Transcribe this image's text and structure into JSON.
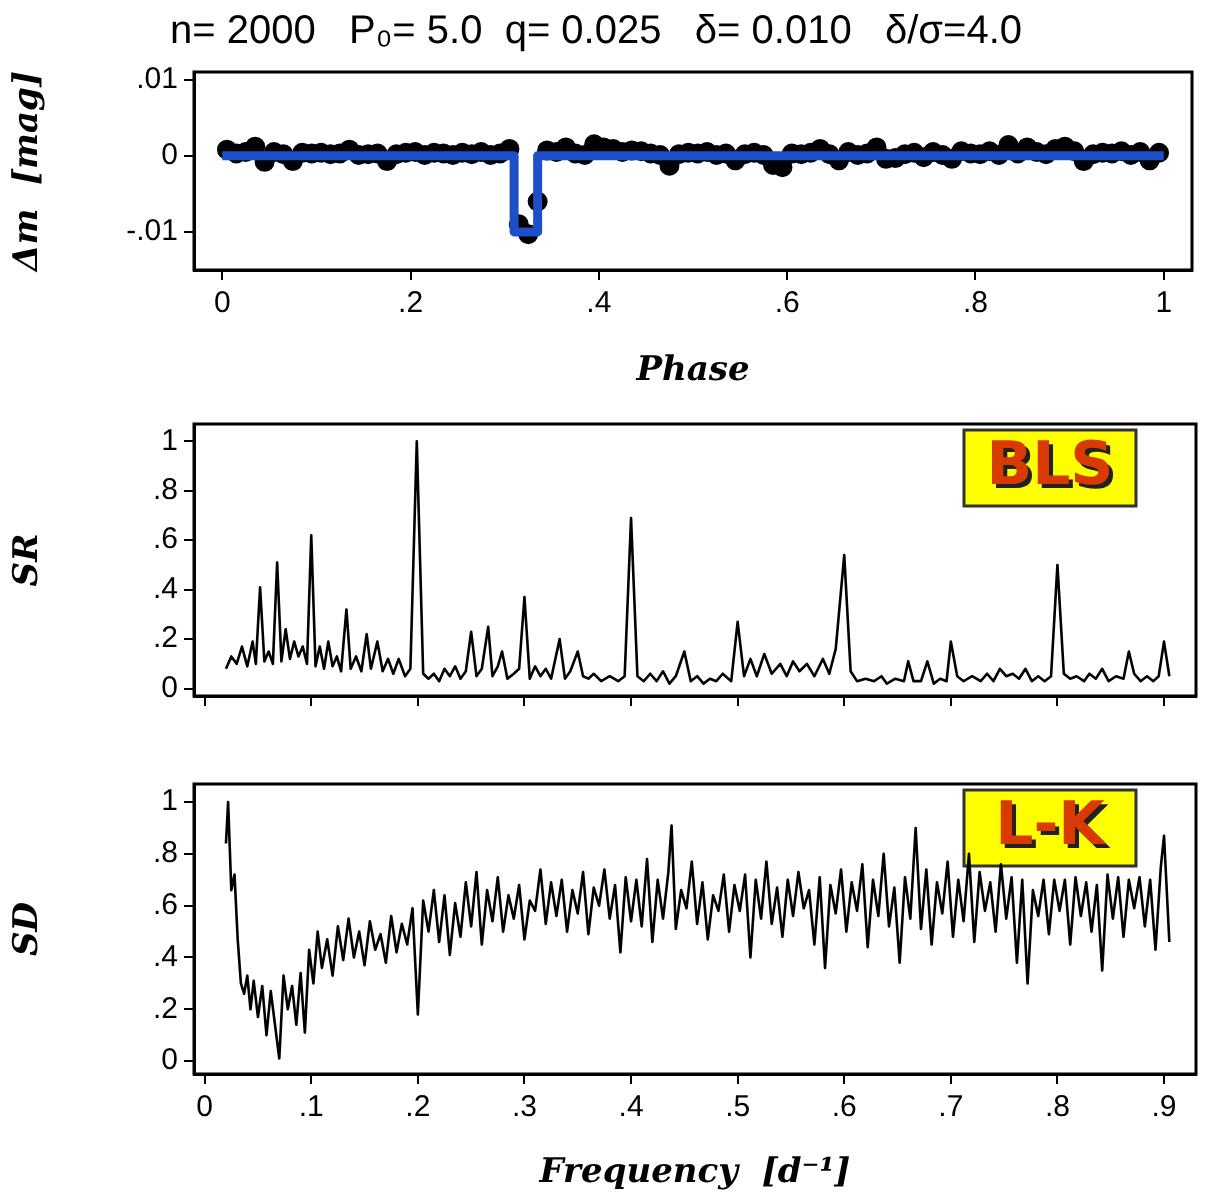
{
  "chart_data": [
    {
      "type": "scatter",
      "title": "n= 2000   P₀= 5.0  q= 0.025   δ= 0.010   δ/σ=4.0",
      "xlabel": "Phase",
      "ylabel": "Δm  [mag]",
      "xlim": [
        -0.03,
        1.03
      ],
      "xticks": [
        {
          "value": 0,
          "label": "0"
        },
        {
          "value": 0.2,
          "label": ".2"
        },
        {
          "value": 0.4,
          "label": ".4"
        },
        {
          "value": 0.6,
          "label": ".6"
        },
        {
          "value": 0.8,
          "label": ".8"
        },
        {
          "value": 1,
          "label": "1"
        }
      ],
      "ylim": [
        -0.015,
        0.011
      ],
      "yticks": [
        {
          "value": -0.01,
          "label": "-.01"
        },
        {
          "value": 0,
          "label": "0"
        },
        {
          "value": 0.01,
          "label": ".01"
        }
      ],
      "series": [
        {
          "type": "scatter",
          "marker": "circle",
          "color": "#000000",
          "x": [
            0.005,
            0.015,
            0.025,
            0.035,
            0.045,
            0.055,
            0.065,
            0.075,
            0.085,
            0.095,
            0.105,
            0.115,
            0.125,
            0.135,
            0.145,
            0.155,
            0.165,
            0.175,
            0.185,
            0.195,
            0.205,
            0.215,
            0.225,
            0.235,
            0.245,
            0.255,
            0.265,
            0.275,
            0.285,
            0.295,
            0.305,
            0.315,
            0.325,
            0.335,
            0.345,
            0.355,
            0.365,
            0.375,
            0.385,
            0.395,
            0.405,
            0.415,
            0.425,
            0.435,
            0.445,
            0.455,
            0.465,
            0.475,
            0.485,
            0.495,
            0.505,
            0.515,
            0.525,
            0.535,
            0.545,
            0.555,
            0.565,
            0.575,
            0.585,
            0.595,
            0.605,
            0.615,
            0.625,
            0.635,
            0.645,
            0.655,
            0.665,
            0.675,
            0.685,
            0.695,
            0.705,
            0.715,
            0.725,
            0.735,
            0.745,
            0.755,
            0.765,
            0.775,
            0.785,
            0.795,
            0.805,
            0.815,
            0.825,
            0.835,
            0.845,
            0.855,
            0.865,
            0.875,
            0.885,
            0.895,
            0.905,
            0.915,
            0.925,
            0.935,
            0.945,
            0.955,
            0.965,
            0.975,
            0.985,
            0.995
          ],
          "values": [
            0.0008,
            0.0003,
            0.0005,
            0.0012,
            -0.0008,
            0.0005,
            0.0002,
            -0.0007,
            0.0004,
            0.0003,
            0.0004,
            0.0002,
            0.0003,
            0.0008,
            0.0001,
            0.0002,
            0.0003,
            -0.0007,
            0.0002,
            0.0004,
            0.0005,
            0.0001,
            0.0004,
            0.0003,
            0.0001,
            0.0004,
            0.0002,
            0.0005,
            0.0001,
            0.0003,
            0.0009,
            -0.009,
            -0.0103,
            -0.006,
            0.0007,
            0.0005,
            0.0011,
            0.0003,
            0.0001,
            0.0015,
            0.0011,
            0.0009,
            0.0005,
            0.0007,
            0.0006,
            0.0003,
            0.0001,
            -0.0013,
            0.0002,
            0.0004,
            0.0003,
            0.0005,
            0.0001,
            0.0003,
            -0.0006,
            0.0002,
            0.0004,
            0.0001,
            -0.0012,
            -0.0015,
            0.0003,
            0.0002,
            0.0004,
            0.0009,
            0.0002,
            -0.0006,
            0.0005,
            0.0001,
            0.0003,
            0.0011,
            -0.0004,
            -0.0003,
            0.0002,
            0.0004,
            -0.0002,
            0.0005,
            0.0001,
            -0.0004,
            0.0006,
            0.0003,
            0.0002,
            0.0006,
            0.0001,
            0.0014,
            0.0003,
            0.0011,
            0.0005,
            0.0002,
            0.0009,
            0.0012,
            0.0006,
            -0.0007,
            0.0002,
            0.0004,
            0.0003,
            0.0006,
            0.0001,
            0.0005,
            -0.0006,
            0.0004
          ]
        },
        {
          "type": "line",
          "color": "#1f4fc8",
          "x": [
            0,
            0.31,
            0.31,
            0.335,
            0.335,
            1
          ],
          "values": [
            0,
            0,
            -0.01,
            -0.01,
            0,
            0
          ]
        }
      ]
    },
    {
      "type": "line",
      "ylabel": "SR",
      "annotations": [
        "BLS"
      ],
      "tick_labels": "y",
      "xlim": [
        -0.01,
        0.93
      ],
      "xticks": [
        {
          "value": 0,
          "label": null
        },
        {
          "value": 0.1,
          "label": null
        },
        {
          "value": 0.2,
          "label": null
        },
        {
          "value": 0.3,
          "label": null
        },
        {
          "value": 0.4,
          "label": null
        },
        {
          "value": 0.5,
          "label": null
        },
        {
          "value": 0.6,
          "label": null
        },
        {
          "value": 0.7,
          "label": null
        },
        {
          "value": 0.8,
          "label": null
        },
        {
          "value": 0.9,
          "label": null
        }
      ],
      "ylim": [
        -0.03,
        1.07
      ],
      "yticks": [
        {
          "value": 0,
          "label": "0"
        },
        {
          "value": 0.2,
          "label": ".2"
        },
        {
          "value": 0.4,
          "label": ".4"
        },
        {
          "value": 0.6,
          "label": ".6"
        },
        {
          "value": 0.8,
          "label": ".8"
        },
        {
          "value": 1,
          "label": "1"
        }
      ],
      "series": [
        {
          "color": "#000000",
          "x": [
            0.02,
            0.025,
            0.03,
            0.035,
            0.04,
            0.045,
            0.048,
            0.052,
            0.056,
            0.06,
            0.064,
            0.068,
            0.072,
            0.076,
            0.08,
            0.084,
            0.088,
            0.092,
            0.096,
            0.1,
            0.104,
            0.108,
            0.112,
            0.116,
            0.12,
            0.124,
            0.128,
            0.133,
            0.137,
            0.142,
            0.147,
            0.152,
            0.156,
            0.162,
            0.167,
            0.172,
            0.177,
            0.182,
            0.188,
            0.193,
            0.199,
            0.205,
            0.21,
            0.215,
            0.22,
            0.225,
            0.23,
            0.235,
            0.24,
            0.245,
            0.25,
            0.255,
            0.26,
            0.266,
            0.27,
            0.275,
            0.279,
            0.284,
            0.29,
            0.295,
            0.3,
            0.305,
            0.31,
            0.315,
            0.32,
            0.325,
            0.333,
            0.338,
            0.343,
            0.35,
            0.355,
            0.36,
            0.365,
            0.372,
            0.38,
            0.388,
            0.394,
            0.4,
            0.406,
            0.412,
            0.418,
            0.424,
            0.43,
            0.436,
            0.442,
            0.45,
            0.456,
            0.462,
            0.468,
            0.474,
            0.48,
            0.486,
            0.494,
            0.5,
            0.506,
            0.512,
            0.518,
            0.525,
            0.532,
            0.54,
            0.546,
            0.552,
            0.558,
            0.565,
            0.572,
            0.58,
            0.586,
            0.592,
            0.6,
            0.606,
            0.612,
            0.62,
            0.628,
            0.635,
            0.64,
            0.648,
            0.656,
            0.66,
            0.665,
            0.672,
            0.678,
            0.684,
            0.69,
            0.696,
            0.7,
            0.706,
            0.712,
            0.72,
            0.728,
            0.734,
            0.74,
            0.746,
            0.752,
            0.758,
            0.764,
            0.77,
            0.776,
            0.782,
            0.788,
            0.794,
            0.8,
            0.806,
            0.812,
            0.818,
            0.825,
            0.83,
            0.836,
            0.842,
            0.848,
            0.855,
            0.862,
            0.867,
            0.872,
            0.878,
            0.884,
            0.89,
            0.895,
            0.9,
            0.905
          ],
          "values": [
            0.08,
            0.13,
            0.1,
            0.17,
            0.09,
            0.19,
            0.1,
            0.41,
            0.11,
            0.15,
            0.1,
            0.51,
            0.11,
            0.24,
            0.12,
            0.19,
            0.13,
            0.17,
            0.1,
            0.62,
            0.09,
            0.17,
            0.08,
            0.19,
            0.09,
            0.13,
            0.07,
            0.32,
            0.08,
            0.13,
            0.07,
            0.22,
            0.08,
            0.19,
            0.07,
            0.12,
            0.06,
            0.12,
            0.05,
            0.08,
            1.0,
            0.06,
            0.04,
            0.06,
            0.03,
            0.08,
            0.05,
            0.09,
            0.04,
            0.07,
            0.23,
            0.05,
            0.08,
            0.25,
            0.05,
            0.09,
            0.15,
            0.04,
            0.06,
            0.08,
            0.37,
            0.04,
            0.09,
            0.05,
            0.08,
            0.04,
            0.2,
            0.04,
            0.07,
            0.15,
            0.05,
            0.04,
            0.06,
            0.03,
            0.05,
            0.03,
            0.05,
            0.69,
            0.05,
            0.03,
            0.06,
            0.03,
            0.07,
            0.02,
            0.05,
            0.15,
            0.03,
            0.05,
            0.02,
            0.04,
            0.03,
            0.06,
            0.03,
            0.27,
            0.05,
            0.12,
            0.05,
            0.14,
            0.06,
            0.1,
            0.05,
            0.11,
            0.07,
            0.1,
            0.05,
            0.12,
            0.06,
            0.16,
            0.54,
            0.07,
            0.03,
            0.04,
            0.03,
            0.05,
            0.02,
            0.04,
            0.03,
            0.11,
            0.03,
            0.03,
            0.11,
            0.02,
            0.04,
            0.03,
            0.19,
            0.05,
            0.03,
            0.05,
            0.03,
            0.06,
            0.03,
            0.08,
            0.05,
            0.06,
            0.04,
            0.08,
            0.03,
            0.05,
            0.03,
            0.05,
            0.5,
            0.06,
            0.04,
            0.05,
            0.03,
            0.06,
            0.04,
            0.08,
            0.03,
            0.05,
            0.04,
            0.15,
            0.06,
            0.03,
            0.05,
            0.03,
            0.05,
            0.19,
            0.05
          ]
        }
      ]
    },
    {
      "type": "line",
      "ylabel": "SD",
      "xlabel": "Frequency  [d⁻¹]",
      "annotations": [
        "L-K"
      ],
      "xlim": [
        -0.01,
        0.93
      ],
      "xticks": [
        {
          "value": 0,
          "label": "0"
        },
        {
          "value": 0.1,
          "label": ".1"
        },
        {
          "value": 0.2,
          "label": ".2"
        },
        {
          "value": 0.3,
          "label": ".3"
        },
        {
          "value": 0.4,
          "label": ".4"
        },
        {
          "value": 0.5,
          "label": ".5"
        },
        {
          "value": 0.6,
          "label": ".6"
        },
        {
          "value": 0.7,
          "label": ".7"
        },
        {
          "value": 0.8,
          "label": ".8"
        },
        {
          "value": 0.9,
          "label": ".9"
        }
      ],
      "ylim": [
        -0.05,
        1.07
      ],
      "yticks": [
        {
          "value": 0,
          "label": "0"
        },
        {
          "value": 0.2,
          "label": ".2"
        },
        {
          "value": 0.4,
          "label": ".4"
        },
        {
          "value": 0.6,
          "label": ".6"
        },
        {
          "value": 0.8,
          "label": ".8"
        },
        {
          "value": 1,
          "label": "1"
        }
      ],
      "series": [
        {
          "color": "#000000",
          "x": [
            0.02,
            0.022,
            0.025,
            0.028,
            0.031,
            0.034,
            0.037,
            0.04,
            0.043,
            0.046,
            0.05,
            0.054,
            0.058,
            0.062,
            0.066,
            0.07,
            0.074,
            0.078,
            0.082,
            0.086,
            0.09,
            0.094,
            0.098,
            0.102,
            0.106,
            0.11,
            0.115,
            0.12,
            0.125,
            0.13,
            0.135,
            0.14,
            0.145,
            0.15,
            0.155,
            0.16,
            0.165,
            0.17,
            0.175,
            0.18,
            0.185,
            0.19,
            0.195,
            0.2,
            0.205,
            0.21,
            0.215,
            0.22,
            0.225,
            0.23,
            0.235,
            0.24,
            0.245,
            0.25,
            0.255,
            0.26,
            0.265,
            0.27,
            0.275,
            0.28,
            0.285,
            0.29,
            0.295,
            0.3,
            0.305,
            0.31,
            0.315,
            0.32,
            0.325,
            0.33,
            0.335,
            0.34,
            0.345,
            0.35,
            0.355,
            0.36,
            0.365,
            0.37,
            0.375,
            0.38,
            0.385,
            0.39,
            0.395,
            0.4,
            0.405,
            0.41,
            0.415,
            0.42,
            0.425,
            0.43,
            0.435,
            0.438,
            0.442,
            0.447,
            0.452,
            0.457,
            0.462,
            0.467,
            0.472,
            0.477,
            0.482,
            0.487,
            0.492,
            0.497,
            0.502,
            0.507,
            0.512,
            0.517,
            0.522,
            0.527,
            0.532,
            0.537,
            0.542,
            0.547,
            0.552,
            0.557,
            0.562,
            0.567,
            0.572,
            0.577,
            0.582,
            0.587,
            0.592,
            0.597,
            0.602,
            0.607,
            0.612,
            0.617,
            0.622,
            0.627,
            0.632,
            0.637,
            0.642,
            0.647,
            0.652,
            0.657,
            0.662,
            0.667,
            0.672,
            0.677,
            0.682,
            0.687,
            0.692,
            0.697,
            0.702,
            0.707,
            0.712,
            0.717,
            0.722,
            0.727,
            0.732,
            0.737,
            0.742,
            0.747,
            0.752,
            0.757,
            0.762,
            0.767,
            0.772,
            0.777,
            0.782,
            0.787,
            0.792,
            0.797,
            0.802,
            0.807,
            0.812,
            0.817,
            0.822,
            0.827,
            0.832,
            0.837,
            0.842,
            0.847,
            0.852,
            0.857,
            0.862,
            0.867,
            0.872,
            0.877,
            0.882,
            0.887,
            0.892,
            0.897,
            0.9,
            0.905
          ],
          "values": [
            0.84,
            1.0,
            0.66,
            0.72,
            0.47,
            0.3,
            0.26,
            0.33,
            0.2,
            0.31,
            0.17,
            0.29,
            0.1,
            0.27,
            0.14,
            0.01,
            0.33,
            0.2,
            0.29,
            0.14,
            0.34,
            0.11,
            0.43,
            0.3,
            0.5,
            0.36,
            0.47,
            0.33,
            0.52,
            0.39,
            0.55,
            0.4,
            0.5,
            0.37,
            0.54,
            0.43,
            0.49,
            0.38,
            0.56,
            0.42,
            0.53,
            0.45,
            0.59,
            0.18,
            0.62,
            0.5,
            0.66,
            0.46,
            0.64,
            0.41,
            0.61,
            0.48,
            0.69,
            0.52,
            0.73,
            0.45,
            0.66,
            0.54,
            0.71,
            0.5,
            0.64,
            0.55,
            0.68,
            0.47,
            0.62,
            0.58,
            0.74,
            0.53,
            0.69,
            0.56,
            0.7,
            0.5,
            0.66,
            0.57,
            0.73,
            0.49,
            0.67,
            0.6,
            0.74,
            0.55,
            0.68,
            0.42,
            0.71,
            0.54,
            0.7,
            0.52,
            0.78,
            0.46,
            0.7,
            0.55,
            0.73,
            0.91,
            0.51,
            0.66,
            0.59,
            0.77,
            0.53,
            0.69,
            0.47,
            0.64,
            0.58,
            0.72,
            0.5,
            0.68,
            0.58,
            0.72,
            0.4,
            0.7,
            0.55,
            0.77,
            0.53,
            0.67,
            0.48,
            0.7,
            0.56,
            0.73,
            0.59,
            0.66,
            0.45,
            0.71,
            0.36,
            0.68,
            0.57,
            0.74,
            0.5,
            0.69,
            0.58,
            0.76,
            0.44,
            0.7,
            0.56,
            0.8,
            0.52,
            0.67,
            0.38,
            0.71,
            0.55,
            0.9,
            0.51,
            0.74,
            0.45,
            0.69,
            0.57,
            0.77,
            0.48,
            0.7,
            0.54,
            0.8,
            0.46,
            0.73,
            0.58,
            0.69,
            0.5,
            0.76,
            0.55,
            0.71,
            0.38,
            0.7,
            0.3,
            0.66,
            0.56,
            0.7,
            0.49,
            0.7,
            0.58,
            0.7,
            0.45,
            0.71,
            0.56,
            0.69,
            0.5,
            0.68,
            0.35,
            0.72,
            0.55,
            0.71,
            0.48,
            0.7,
            0.59,
            0.71,
            0.52,
            0.7,
            0.43,
            0.75,
            0.87,
            0.46
          ]
        }
      ]
    }
  ]
}
